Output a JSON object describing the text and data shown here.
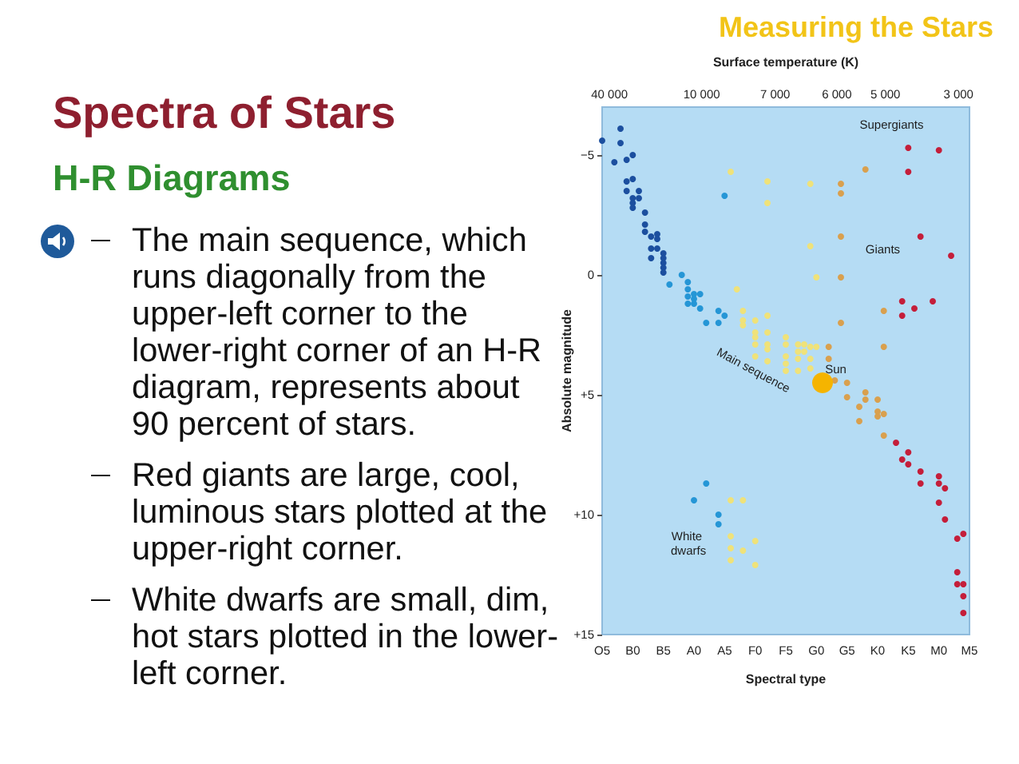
{
  "chart_data": {
    "type": "scatter",
    "title": "Spectra of Stars",
    "subtitle": "H-R Diagrams",
    "xlabel": "Spectral type",
    "ylabel": "Absolute magnitude",
    "x2label": "Surface temperature (K)",
    "categories": [
      "O5",
      null,
      null,
      null,
      null,
      "B0",
      null,
      null,
      null,
      null,
      "B5",
      null,
      null,
      null,
      null,
      "A0",
      null,
      null,
      null,
      null,
      "A5",
      null,
      null,
      null,
      null,
      "F0",
      null,
      null,
      null,
      null,
      "F5",
      null,
      null,
      null,
      null,
      "G0",
      null,
      null,
      null,
      null,
      "G5",
      null,
      null,
      null,
      null,
      "K0",
      null,
      null,
      null,
      null,
      "K5",
      null,
      null,
      null,
      null,
      "M0",
      null,
      null,
      null,
      null,
      "M5"
    ],
    "ylim": [
      15,
      -7
    ],
    "yticks": [
      {
        "value": -5,
        "label": "−5"
      },
      0,
      {
        "value": 5,
        "label": "+5"
      },
      {
        "value": 10,
        "label": "+10"
      },
      {
        "value": 15,
        "label": "+15"
      }
    ],
    "marker": "circle",
    "series": [
      {
        "color": "#1c4f9f",
        "values": [
          -5.6,
          null,
          -4.7,
          -6.1,
          -4.8,
          -5.0,
          -3.5,
          -2.6,
          -1.6,
          -1.7,
          -0.9,
          null,
          null,
          null,
          null,
          null,
          null,
          null,
          null,
          null,
          null,
          null,
          null,
          null,
          null,
          null,
          null,
          null,
          null,
          null,
          null,
          null,
          null,
          null,
          null,
          null,
          null,
          null,
          null,
          null,
          null,
          null,
          null,
          null,
          null,
          null,
          null,
          null,
          null,
          null,
          null,
          null,
          null,
          null,
          null,
          null,
          null,
          null,
          null,
          null,
          null
        ]
      },
      {
        "color": "#1c4f9f",
        "values": [
          null,
          null,
          null,
          -5.5,
          -3.9,
          -4.0,
          -3.2,
          -2.1,
          -1.1,
          -1.5,
          -0.7,
          null,
          null,
          null,
          null,
          null,
          null,
          null,
          null,
          null,
          null,
          null,
          null,
          null,
          null,
          null,
          null,
          null,
          null,
          null,
          null,
          null,
          null,
          null,
          null,
          null,
          null,
          null,
          null,
          null,
          null,
          null,
          null,
          null,
          null,
          null,
          null,
          null,
          null,
          null,
          null,
          null,
          null,
          null,
          null,
          null,
          null,
          null,
          null,
          null,
          null
        ]
      },
      {
        "color": "#1c4f9f",
        "values": [
          null,
          null,
          null,
          null,
          -3.5,
          -3.2,
          null,
          -1.8,
          -0.7,
          -1.1,
          -0.5,
          null,
          null,
          null,
          null,
          null,
          null,
          null,
          null,
          null,
          null,
          null,
          null,
          null,
          null,
          null,
          null,
          null,
          null,
          null,
          null,
          null,
          null,
          null,
          null,
          null,
          null,
          null,
          null,
          null,
          null,
          null,
          null,
          null,
          null,
          null,
          null,
          null,
          null,
          null,
          null,
          null,
          null,
          null,
          null,
          null,
          null,
          null,
          null,
          null,
          null
        ]
      },
      {
        "color": "#1c4f9f",
        "values": [
          null,
          null,
          null,
          null,
          null,
          -3.0,
          null,
          null,
          null,
          null,
          -0.3,
          null,
          null,
          null,
          null,
          null,
          null,
          null,
          null,
          null,
          null,
          null,
          null,
          null,
          null,
          null,
          null,
          null,
          null,
          null,
          null,
          null,
          null,
          null,
          null,
          null,
          null,
          null,
          null,
          null,
          null,
          null,
          null,
          null,
          null,
          null,
          null,
          null,
          null,
          null,
          null,
          null,
          null,
          null,
          null,
          null,
          null,
          null,
          null,
          null,
          null
        ]
      },
      {
        "color": "#1c4f9f",
        "values": [
          null,
          null,
          null,
          null,
          null,
          -2.8,
          null,
          null,
          null,
          null,
          -0.1,
          null,
          null,
          null,
          null,
          null,
          null,
          null,
          null,
          null,
          null,
          null,
          null,
          null,
          null,
          null,
          null,
          null,
          null,
          null,
          null,
          null,
          null,
          null,
          null,
          null,
          null,
          null,
          null,
          null,
          null,
          null,
          null,
          null,
          null,
          null,
          null,
          null,
          null,
          null,
          null,
          null,
          null,
          null,
          null,
          null,
          null,
          null,
          null,
          null,
          null
        ]
      },
      {
        "color": "#2596d6",
        "values": [
          null,
          null,
          null,
          null,
          null,
          null,
          null,
          null,
          null,
          null,
          null,
          0.4,
          null,
          0.0,
          0.3,
          0.8,
          0.8,
          2.0,
          null,
          1.5,
          -3.3,
          null,
          null,
          null,
          null,
          null,
          null,
          null,
          null,
          null,
          null,
          null,
          null,
          null,
          null,
          null,
          null,
          null,
          null,
          null,
          null,
          null,
          null,
          null,
          null,
          null,
          null,
          null,
          null,
          null,
          null,
          null,
          null,
          null,
          null,
          null,
          null,
          null,
          null,
          null,
          null
        ]
      },
      {
        "color": "#2596d6",
        "values": [
          null,
          null,
          null,
          null,
          null,
          null,
          null,
          null,
          null,
          null,
          null,
          null,
          null,
          null,
          0.6,
          1.0,
          1.4,
          8.7,
          null,
          2.0,
          1.7,
          null,
          null,
          null,
          null,
          null,
          null,
          null,
          null,
          null,
          null,
          null,
          null,
          null,
          null,
          null,
          null,
          null,
          null,
          null,
          null,
          null,
          null,
          null,
          null,
          null,
          null,
          null,
          null,
          null,
          null,
          null,
          null,
          null,
          null,
          null,
          null,
          null,
          null,
          null,
          null
        ]
      },
      {
        "color": "#2596d6",
        "values": [
          null,
          null,
          null,
          null,
          null,
          null,
          null,
          null,
          null,
          null,
          null,
          null,
          null,
          null,
          0.9,
          1.2,
          null,
          null,
          null,
          10.0,
          null,
          null,
          null,
          null,
          null,
          null,
          null,
          null,
          null,
          null,
          null,
          null,
          null,
          null,
          null,
          null,
          null,
          null,
          null,
          null,
          null,
          null,
          null,
          null,
          null,
          null,
          null,
          null,
          null,
          null,
          null,
          null,
          null,
          null,
          null,
          null,
          null,
          null,
          null,
          null,
          null
        ]
      },
      {
        "color": "#2596d6",
        "values": [
          null,
          null,
          null,
          null,
          null,
          null,
          null,
          null,
          null,
          null,
          null,
          null,
          null,
          null,
          1.2,
          9.4,
          null,
          null,
          null,
          10.4,
          null,
          null,
          null,
          null,
          null,
          null,
          null,
          null,
          null,
          null,
          null,
          null,
          null,
          null,
          null,
          null,
          null,
          null,
          null,
          null,
          null,
          null,
          null,
          null,
          null,
          null,
          null,
          null,
          null,
          null,
          null,
          null,
          null,
          null,
          null,
          null,
          null,
          null,
          null,
          null,
          null
        ]
      },
      {
        "color": "#efe27a",
        "values": [
          null,
          null,
          null,
          null,
          null,
          null,
          null,
          null,
          null,
          null,
          null,
          null,
          null,
          null,
          null,
          null,
          null,
          null,
          null,
          null,
          null,
          -4.3,
          0.6,
          1.5,
          null,
          1.9,
          null,
          -3.9,
          null,
          null,
          2.6,
          null,
          2.9,
          2.9,
          -3.8,
          0.1,
          null,
          null,
          null,
          null,
          null,
          null,
          null,
          null,
          null,
          null,
          null,
          null,
          null,
          null,
          null,
          null,
          null,
          null,
          null,
          null,
          null,
          null,
          null,
          null,
          null
        ]
      },
      {
        "color": "#efe27a",
        "values": [
          null,
          null,
          null,
          null,
          null,
          null,
          null,
          null,
          null,
          null,
          null,
          null,
          null,
          null,
          null,
          null,
          null,
          null,
          null,
          null,
          null,
          9.4,
          null,
          1.9,
          null,
          2.4,
          null,
          -3.0,
          null,
          null,
          2.9,
          null,
          3.2,
          3.2,
          -1.2,
          3.0,
          null,
          null,
          null,
          null,
          null,
          null,
          null,
          null,
          null,
          null,
          null,
          null,
          null,
          null,
          null,
          null,
          null,
          null,
          null,
          null,
          null,
          null,
          null,
          null,
          null
        ]
      },
      {
        "color": "#efe27a",
        "values": [
          null,
          null,
          null,
          null,
          null,
          null,
          null,
          null,
          null,
          null,
          null,
          null,
          null,
          null,
          null,
          null,
          null,
          null,
          null,
          null,
          null,
          10.9,
          null,
          2.1,
          null,
          2.6,
          null,
          1.7,
          null,
          null,
          3.4,
          null,
          3.5,
          null,
          3.0,
          null,
          null,
          null,
          null,
          null,
          null,
          null,
          null,
          null,
          null,
          null,
          null,
          null,
          null,
          null,
          null,
          null,
          null,
          null,
          null,
          null,
          null,
          null,
          null,
          null,
          null
        ]
      },
      {
        "color": "#efe27a",
        "values": [
          null,
          null,
          null,
          null,
          null,
          null,
          null,
          null,
          null,
          null,
          null,
          null,
          null,
          null,
          null,
          null,
          null,
          null,
          null,
          null,
          null,
          11.4,
          null,
          9.4,
          null,
          2.9,
          null,
          2.4,
          null,
          null,
          3.7,
          null,
          4.0,
          null,
          3.5,
          null,
          null,
          null,
          null,
          null,
          null,
          null,
          null,
          null,
          null,
          null,
          null,
          null,
          null,
          null,
          null,
          null,
          null,
          null,
          null,
          null,
          null,
          null,
          null,
          null,
          null
        ]
      },
      {
        "color": "#efe27a",
        "values": [
          null,
          null,
          null,
          null,
          null,
          null,
          null,
          null,
          null,
          null,
          null,
          null,
          null,
          null,
          null,
          null,
          null,
          null,
          null,
          null,
          null,
          11.9,
          null,
          11.5,
          null,
          3.4,
          null,
          2.9,
          null,
          null,
          4.0,
          null,
          null,
          null,
          3.9,
          null,
          null,
          null,
          null,
          null,
          null,
          null,
          null,
          null,
          null,
          null,
          null,
          null,
          null,
          null,
          null,
          null,
          null,
          null,
          null,
          null,
          null,
          null,
          null,
          null,
          null
        ]
      },
      {
        "color": "#efe27a",
        "values": [
          null,
          null,
          null,
          null,
          null,
          null,
          null,
          null,
          null,
          null,
          null,
          null,
          null,
          null,
          null,
          null,
          null,
          null,
          null,
          null,
          null,
          null,
          null,
          null,
          null,
          11.1,
          null,
          3.1,
          null,
          null,
          null,
          null,
          null,
          null,
          null,
          null,
          null,
          null,
          null,
          null,
          null,
          null,
          null,
          null,
          null,
          null,
          null,
          null,
          null,
          null,
          null,
          null,
          null,
          null,
          null,
          null,
          null,
          null,
          null,
          null,
          null
        ]
      },
      {
        "color": "#efe27a",
        "values": [
          null,
          null,
          null,
          null,
          null,
          null,
          null,
          null,
          null,
          null,
          null,
          null,
          null,
          null,
          null,
          null,
          null,
          null,
          null,
          null,
          null,
          null,
          null,
          null,
          null,
          12.1,
          null,
          3.6,
          null,
          null,
          null,
          null,
          null,
          null,
          null,
          null,
          null,
          null,
          null,
          null,
          null,
          null,
          null,
          null,
          null,
          null,
          null,
          null,
          null,
          null,
          null,
          null,
          null,
          null,
          null,
          null,
          null,
          null,
          null,
          null,
          null
        ]
      },
      {
        "color": "#d9a04e",
        "values": [
          null,
          null,
          null,
          null,
          null,
          null,
          null,
          null,
          null,
          null,
          null,
          null,
          null,
          null,
          null,
          null,
          null,
          null,
          null,
          null,
          null,
          null,
          null,
          null,
          null,
          null,
          null,
          null,
          null,
          null,
          null,
          null,
          null,
          null,
          null,
          null,
          null,
          3.0,
          4.4,
          -3.8,
          4.5,
          null,
          5.5,
          -4.4,
          null,
          5.2,
          1.5,
          null,
          null,
          null,
          null,
          null,
          null,
          null,
          null,
          null,
          null,
          null,
          null,
          null,
          null
        ]
      },
      {
        "color": "#d9a04e",
        "values": [
          null,
          null,
          null,
          null,
          null,
          null,
          null,
          null,
          null,
          null,
          null,
          null,
          null,
          null,
          null,
          null,
          null,
          null,
          null,
          null,
          null,
          null,
          null,
          null,
          null,
          null,
          null,
          null,
          null,
          null,
          null,
          null,
          null,
          null,
          null,
          null,
          null,
          3.5,
          null,
          -3.4,
          5.1,
          null,
          6.1,
          4.9,
          null,
          5.7,
          3.0,
          null,
          null,
          null,
          null,
          null,
          null,
          null,
          null,
          null,
          null,
          null,
          null,
          null,
          null
        ]
      },
      {
        "color": "#d9a04e",
        "values": [
          null,
          null,
          null,
          null,
          null,
          null,
          null,
          null,
          null,
          null,
          null,
          null,
          null,
          null,
          null,
          null,
          null,
          null,
          null,
          null,
          null,
          null,
          null,
          null,
          null,
          null,
          null,
          null,
          null,
          null,
          null,
          null,
          null,
          null,
          null,
          null,
          null,
          null,
          null,
          -1.6,
          null,
          null,
          null,
          5.2,
          null,
          5.9,
          5.8,
          null,
          null,
          null,
          null,
          null,
          null,
          null,
          null,
          null,
          null,
          null,
          null,
          null,
          null
        ]
      },
      {
        "color": "#d9a04e",
        "values": [
          null,
          null,
          null,
          null,
          null,
          null,
          null,
          null,
          null,
          null,
          null,
          null,
          null,
          null,
          null,
          null,
          null,
          null,
          null,
          null,
          null,
          null,
          null,
          null,
          null,
          null,
          null,
          null,
          null,
          null,
          null,
          null,
          null,
          null,
          null,
          null,
          null,
          null,
          null,
          0.1,
          null,
          null,
          null,
          null,
          null,
          null,
          6.7,
          null,
          null,
          null,
          null,
          null,
          null,
          null,
          null,
          null,
          null,
          null,
          null,
          null,
          null
        ]
      },
      {
        "color": "#d9a04e",
        "values": [
          null,
          null,
          null,
          null,
          null,
          null,
          null,
          null,
          null,
          null,
          null,
          null,
          null,
          null,
          null,
          null,
          null,
          null,
          null,
          null,
          null,
          null,
          null,
          null,
          null,
          null,
          null,
          null,
          null,
          null,
          null,
          null,
          null,
          null,
          null,
          null,
          null,
          null,
          null,
          2.0,
          null,
          null,
          null,
          null,
          null,
          null,
          null,
          null,
          null,
          null,
          null,
          null,
          null,
          null,
          null,
          null,
          null,
          null,
          null,
          null,
          null
        ]
      },
      {
        "color": "#c41e3a",
        "values": [
          null,
          null,
          null,
          null,
          null,
          null,
          null,
          null,
          null,
          null,
          null,
          null,
          null,
          null,
          null,
          null,
          null,
          null,
          null,
          null,
          null,
          null,
          null,
          null,
          null,
          null,
          null,
          null,
          null,
          null,
          null,
          null,
          null,
          null,
          null,
          null,
          null,
          null,
          null,
          null,
          null,
          null,
          null,
          null,
          null,
          null,
          null,
          null,
          7.0,
          1.1,
          -5.3,
          1.4,
          -1.6,
          null,
          1.1,
          -5.2,
          8.9,
          -0.8,
          11.0,
          10.8,
          null
        ]
      },
      {
        "color": "#c41e3a",
        "values": [
          null,
          null,
          null,
          null,
          null,
          null,
          null,
          null,
          null,
          null,
          null,
          null,
          null,
          null,
          null,
          null,
          null,
          null,
          null,
          null,
          null,
          null,
          null,
          null,
          null,
          null,
          null,
          null,
          null,
          null,
          null,
          null,
          null,
          null,
          null,
          null,
          null,
          null,
          null,
          null,
          null,
          null,
          null,
          null,
          null,
          null,
          null,
          null,
          null,
          1.7,
          -4.3,
          null,
          8.2,
          null,
          null,
          8.4,
          10.2,
          null,
          12.4,
          12.9,
          null
        ]
      },
      {
        "color": "#c41e3a",
        "values": [
          null,
          null,
          null,
          null,
          null,
          null,
          null,
          null,
          null,
          null,
          null,
          null,
          null,
          null,
          null,
          null,
          null,
          null,
          null,
          null,
          null,
          null,
          null,
          null,
          null,
          null,
          null,
          null,
          null,
          null,
          null,
          null,
          null,
          null,
          null,
          null,
          null,
          null,
          null,
          null,
          null,
          null,
          null,
          null,
          null,
          null,
          null,
          null,
          null,
          7.7,
          7.4,
          null,
          8.7,
          null,
          null,
          8.7,
          null,
          null,
          12.9,
          13.4,
          null
        ]
      },
      {
        "color": "#c41e3a",
        "values": [
          null,
          null,
          null,
          null,
          null,
          null,
          null,
          null,
          null,
          null,
          null,
          null,
          null,
          null,
          null,
          null,
          null,
          null,
          null,
          null,
          null,
          null,
          null,
          null,
          null,
          null,
          null,
          null,
          null,
          null,
          null,
          null,
          null,
          null,
          null,
          null,
          null,
          null,
          null,
          null,
          null,
          null,
          null,
          null,
          null,
          null,
          null,
          null,
          null,
          null,
          7.9,
          null,
          null,
          null,
          null,
          9.5,
          null,
          null,
          null,
          14.1,
          null
        ]
      },
      {
        "type": "bubble",
        "color": "#f5b400",
        "values": [
          null,
          null,
          null,
          null,
          null,
          null,
          null,
          null,
          null,
          null,
          null,
          null,
          null,
          null,
          null,
          null,
          null,
          null,
          null,
          null,
          null,
          null,
          null,
          null,
          null,
          null,
          null,
          null,
          null,
          null,
          null,
          null,
          null,
          null,
          null,
          null,
          4.5,
          null,
          null,
          null,
          null,
          null,
          null,
          null,
          null,
          null,
          null,
          null,
          null,
          null,
          null,
          null,
          null,
          null,
          null,
          null,
          null,
          null,
          null,
          null,
          null
        ],
        "sizes": [
          null,
          null,
          null,
          null,
          null,
          null,
          null,
          null,
          null,
          null,
          null,
          null,
          null,
          null,
          null,
          null,
          null,
          null,
          null,
          null,
          null,
          null,
          null,
          null,
          null,
          null,
          null,
          null,
          null,
          null,
          null,
          null,
          null,
          null,
          null,
          null,
          1,
          null,
          null,
          null,
          null,
          null,
          null,
          null,
          null,
          null,
          null,
          null,
          null,
          null,
          null,
          null,
          null,
          null,
          null,
          null,
          null,
          null,
          null,
          null,
          null
        ]
      }
    ],
    "annotations": [
      "Measuring the Stars",
      "The main sequence, which runs diagonally from the upper-left corner to the lower-right corner of an H-R diagram, represents about 90 percent of stars.",
      "Red giants are large, cool, luminous stars plotted at the upper-right corner.",
      "White dwarfs are small, dim, hot stars plotted in the lower-left corner.",
      "40 000",
      "10 000",
      "7 000",
      "6 000",
      "5 000",
      "3 000",
      "Supergiants",
      "Giants",
      "Main sequence",
      "Sun",
      "White dwarfs"
    ]
  }
}
